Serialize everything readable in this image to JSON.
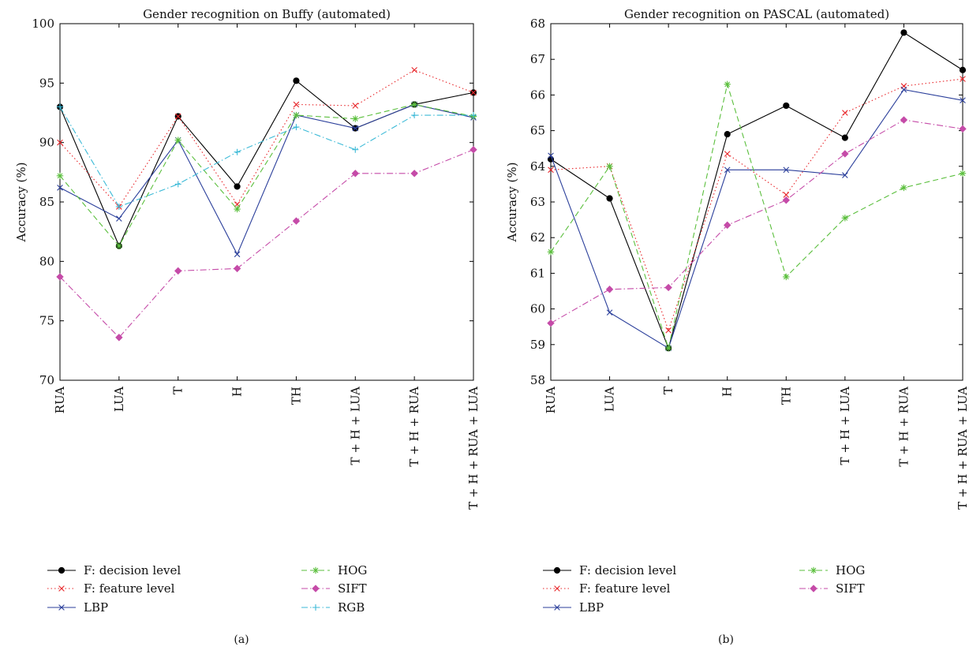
{
  "chart_data": [
    {
      "type": "line",
      "title": "Gender recognition on Buffy (automated)",
      "xlabel": "",
      "ylabel": "Accuracy (%)",
      "caption": "(a)",
      "categories": [
        "RUA",
        "LUA",
        "T",
        "H",
        "TH",
        "T + H + LUA",
        "T + H + RUA",
        "T + H + RUA + LUA"
      ],
      "ylim": [
        70,
        100
      ],
      "yticks": [
        70,
        75,
        80,
        85,
        90,
        95,
        100
      ],
      "grid": false,
      "legend_position": "below",
      "series": [
        {
          "name": "F: decision level",
          "style": "solid",
          "marker": "dot",
          "color": "#000000",
          "values": [
            93.0,
            81.3,
            92.2,
            86.3,
            95.2,
            91.2,
            93.2,
            94.2
          ]
        },
        {
          "name": "F: feature level",
          "style": "dotted",
          "marker": "x",
          "color": "#e8262a",
          "values": [
            90.0,
            84.6,
            92.2,
            84.8,
            93.2,
            93.1,
            96.1,
            94.2
          ]
        },
        {
          "name": "LBP",
          "style": "solid",
          "marker": "x",
          "color": "#2b3f9b",
          "values": [
            86.2,
            83.6,
            90.2,
            80.6,
            92.3,
            91.2,
            93.2,
            92.1
          ]
        },
        {
          "name": "HOG",
          "style": "dashed",
          "marker": "star",
          "color": "#5bbf3d",
          "values": [
            87.2,
            81.3,
            90.2,
            84.4,
            92.3,
            92.0,
            93.2,
            92.2
          ]
        },
        {
          "name": "SIFT",
          "style": "dashdot",
          "marker": "diamond",
          "color": "#c54ba8",
          "values": [
            78.7,
            73.6,
            79.2,
            79.4,
            83.4,
            87.4,
            87.4,
            89.4
          ]
        },
        {
          "name": "RGB",
          "style": "dashdot",
          "marker": "plus",
          "color": "#3cbad7",
          "values": [
            93.0,
            84.6,
            86.5,
            89.2,
            91.3,
            89.4,
            92.3,
            92.3
          ]
        }
      ]
    },
    {
      "type": "line",
      "title": "Gender recognition on PASCAL (automated)",
      "xlabel": "",
      "ylabel": "Accuracy (%)",
      "caption": "(b)",
      "categories": [
        "RUA",
        "LUA",
        "T",
        "H",
        "TH",
        "T + H + LUA",
        "T + H + RUA",
        "T + H + RUA + LUA"
      ],
      "ylim": [
        58,
        68
      ],
      "yticks": [
        58,
        59,
        60,
        61,
        62,
        63,
        64,
        65,
        66,
        67,
        68
      ],
      "grid": false,
      "legend_position": "below",
      "series": [
        {
          "name": "F: decision level",
          "style": "solid",
          "marker": "dot",
          "color": "#000000",
          "values": [
            64.2,
            63.1,
            58.9,
            64.9,
            65.7,
            64.8,
            67.75,
            66.7
          ]
        },
        {
          "name": "F: feature level",
          "style": "dotted",
          "marker": "x",
          "color": "#e8262a",
          "values": [
            63.9,
            64.0,
            59.4,
            64.35,
            63.2,
            65.5,
            66.25,
            66.45
          ]
        },
        {
          "name": "LBP",
          "style": "solid",
          "marker": "x",
          "color": "#2b3f9b",
          "values": [
            64.3,
            59.9,
            58.9,
            63.9,
            63.9,
            63.75,
            66.15,
            65.85
          ]
        },
        {
          "name": "HOG",
          "style": "dashed",
          "marker": "star",
          "color": "#5bbf3d",
          "values": [
            61.6,
            64.0,
            58.9,
            66.3,
            60.9,
            62.55,
            63.4,
            63.8
          ]
        },
        {
          "name": "SIFT",
          "style": "dashdot",
          "marker": "diamond",
          "color": "#c54ba8",
          "values": [
            59.6,
            60.55,
            60.6,
            62.35,
            63.05,
            64.35,
            65.3,
            65.05
          ]
        }
      ]
    }
  ]
}
